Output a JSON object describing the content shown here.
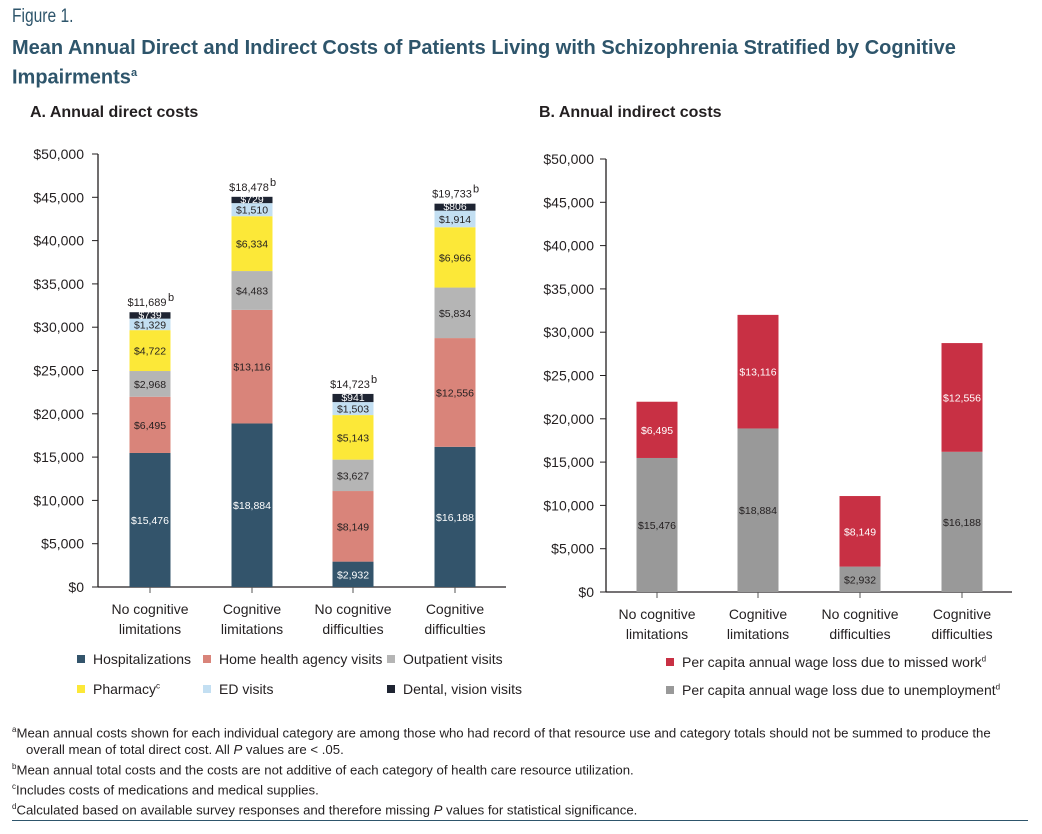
{
  "figure": {
    "label": "Figure 1.",
    "title": "Mean Annual Direct and Indirect Costs of Patients Living with Schizophrenia Stratified by Cognitive Impairments",
    "title_sup": "a"
  },
  "chart_data": [
    {
      "type": "bar",
      "stacked": true,
      "title": "A. Annual direct costs",
      "xlabel": "",
      "ylabel": "",
      "ylim": [
        0,
        50000
      ],
      "yticks": [
        "$0",
        "$5,000",
        "$10,000",
        "$15,000",
        "$20,000",
        "$25,000",
        "$30,000",
        "$35,000",
        "$40,000",
        "$45,000",
        "$50,000"
      ],
      "grid": false,
      "categories": [
        [
          "No cognitive",
          "limitations"
        ],
        [
          "Cognitive",
          "limitations"
        ],
        [
          "No cognitive",
          "difficulties"
        ],
        [
          "Cognitive",
          "difficulties"
        ]
      ],
      "series": [
        {
          "name": "Hospitalizations",
          "color": "#33546b",
          "label_color": "#ffffff",
          "values": [
            15476,
            18884,
            2932,
            16188
          ],
          "labels": [
            "$15,476",
            "$18,884",
            "$2,932",
            "$16,188"
          ]
        },
        {
          "name": "Home health agency visits",
          "color": "#d9847a",
          "label_color": "#231f20",
          "values": [
            6495,
            13116,
            8149,
            12556
          ],
          "labels": [
            "$6,495",
            "$13,116",
            "$8,149",
            "$12,556"
          ]
        },
        {
          "name": "Outpatient visits",
          "color": "#b5b5b5",
          "label_color": "#231f20",
          "values": [
            2968,
            4483,
            3627,
            5834
          ],
          "labels": [
            "$2,968",
            "$4,483",
            "$3,627",
            "$5,834"
          ]
        },
        {
          "name": "Pharmacy",
          "sup": "c",
          "color": "#fce838",
          "label_color": "#231f20",
          "values": [
            4722,
            6334,
            5143,
            6966
          ],
          "labels": [
            "$4,722",
            "$6,334",
            "$5,143",
            "$6,966"
          ]
        },
        {
          "name": "ED visits",
          "color": "#c3dff2",
          "label_color": "#231f20",
          "values": [
            1329,
            1510,
            1503,
            1914
          ],
          "labels": [
            "$1,329",
            "$1,510",
            "$1,503",
            "$1,914"
          ]
        },
        {
          "name": "Dental, vision visits",
          "color": "#1e2432",
          "label_color": "#ffffff",
          "values": [
            739,
            729,
            941,
            806
          ],
          "labels": [
            "$739",
            "$729",
            "$941",
            "$806"
          ]
        }
      ],
      "totals": {
        "values": [
          11689,
          18478,
          14723,
          19733
        ],
        "labels": [
          "$11,689",
          "$18,478",
          "$14,723",
          "$19,733"
        ],
        "sup": "b"
      },
      "legend": {
        "placement": "bottom"
      }
    },
    {
      "type": "bar",
      "stacked": true,
      "title": "B. Annual indirect costs",
      "xlabel": "",
      "ylabel": "",
      "ylim": [
        0,
        50000
      ],
      "yticks": [
        "$0",
        "$5,000",
        "$10,000",
        "$15,000",
        "$20,000",
        "$25,000",
        "$30,000",
        "$35,000",
        "$40,000",
        "$45,000",
        "$50,000"
      ],
      "grid": false,
      "categories": [
        [
          "No cognitive",
          "limitations"
        ],
        [
          "Cognitive",
          "limitations"
        ],
        [
          "No cognitive",
          "difficulties"
        ],
        [
          "Cognitive",
          "difficulties"
        ]
      ],
      "series": [
        {
          "name": "Per capita annual wage loss due to unemployment",
          "sup": "d",
          "color": "#999999",
          "label_color": "#231f20",
          "values": [
            15476,
            18884,
            2932,
            16188
          ],
          "labels": [
            "$15,476",
            "$18,884",
            "$2,932",
            "$16,188"
          ]
        },
        {
          "name": "Per capita annual wage loss due to missed work",
          "sup": "d",
          "color": "#c83044",
          "label_color": "#ffffff",
          "values": [
            6495,
            13116,
            8149,
            12556
          ],
          "labels": [
            "$6,495",
            "$13,116",
            "$8,149",
            "$12,556"
          ]
        }
      ],
      "legend": {
        "placement": "bottom"
      }
    }
  ],
  "footnotes": [
    {
      "sup": "a",
      "parts": [
        "Mean annual costs shown for each individual category are among those who had record of that resource use and category totals should not be summed to produce the",
        "overall mean of total direct cost. All ",
        "P",
        " values are  < .05."
      ]
    },
    {
      "sup": "b",
      "text": "Mean annual total costs and the costs are not additive of each category of health care resource utilization."
    },
    {
      "sup": "c",
      "text": "Includes costs of medications and medical supplies."
    },
    {
      "sup": "d",
      "parts": [
        "Calculated based on available survey responses and therefore missing ",
        "P",
        " values for statistical significance."
      ]
    }
  ]
}
